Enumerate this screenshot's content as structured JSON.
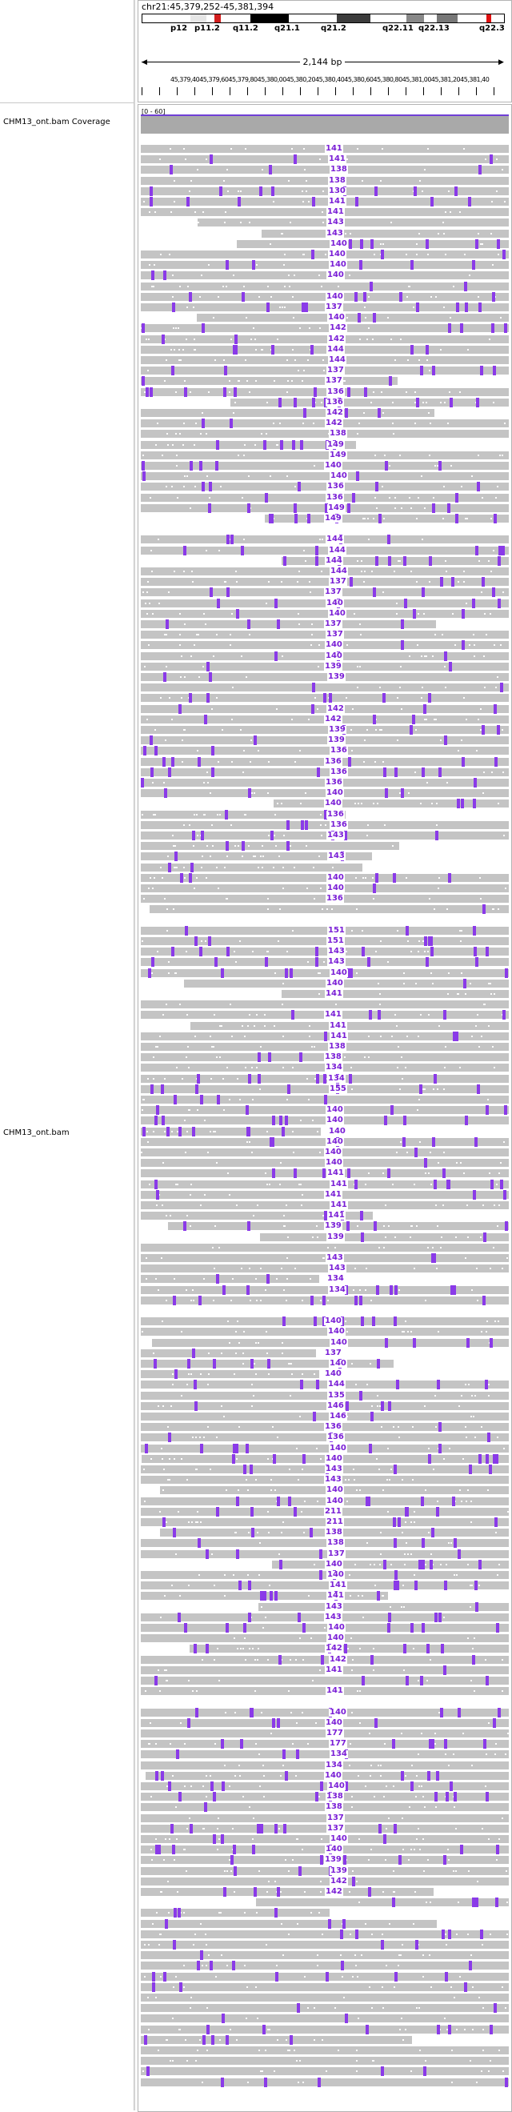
{
  "header": {
    "locus": "chr21:45,379,252-45,381,394",
    "band_labels": [
      "p12",
      "p11.2",
      "q11.2",
      "q21.1",
      "q21.2",
      "q22.11",
      "q22.13",
      "q22.3"
    ],
    "scale_label": "2,144 bp",
    "ruler_text": "45,379,4045,379,6045,379,8045,380,0045,380,2045,380,4045,380,6045,380,8045,381,0045,381,2045,381,40"
  },
  "tracks": {
    "coverage_label": "CHM13_ont.bam Coverage",
    "coverage_range": "[0 - 60]",
    "alignment_label": "CHM13_ont.bam"
  },
  "colors": {
    "read": "#c4c4c4",
    "insertion": "#8a3ae8",
    "coverage": "#a9a9a9",
    "label": "#7a1fd6"
  },
  "read_length_labels": [
    "141",
    "141",
    "138",
    "138",
    "130",
    "141",
    "141",
    "143",
    "143",
    "140",
    "140",
    "140",
    "140",
    "140",
    "137",
    "140",
    "142",
    "142",
    "144",
    "144",
    "137",
    "137",
    "136",
    "136",
    "142",
    "142",
    "138",
    "149",
    "149",
    "140",
    "140",
    "136",
    "136",
    "149",
    "149",
    "144",
    "144",
    "144",
    "144",
    "137",
    "137",
    "140",
    "140",
    "137",
    "137",
    "140",
    "140",
    "139",
    "139",
    "142",
    "142",
    "139",
    "139",
    "136",
    "136",
    "136",
    "136",
    "140",
    "140",
    "136",
    "136",
    "143",
    "143",
    "140",
    "140",
    "136",
    "151",
    "151",
    "143",
    "143",
    "140",
    "140",
    "141",
    "141",
    "141",
    "141",
    "138",
    "138",
    "134",
    "134",
    "155",
    "140",
    "140",
    "140",
    "140",
    "140",
    "140",
    "141",
    "141",
    "141",
    "141",
    "141",
    "139",
    "139",
    "143",
    "143",
    "134",
    "134",
    "140",
    "140",
    "140",
    "137",
    "140",
    "140",
    "144",
    "135",
    "146",
    "146",
    "136",
    "136",
    "140",
    "140",
    "143",
    "143",
    "140",
    "140",
    "211",
    "211",
    "138",
    "138",
    "137",
    "140",
    "140",
    "141",
    "141",
    "143",
    "143",
    "140",
    "140",
    "142",
    "142",
    "141",
    "141",
    "140",
    "140",
    "177",
    "177",
    "134",
    "134",
    "140",
    "140",
    "138",
    "138",
    "137",
    "137",
    "140",
    "140",
    "139",
    "139",
    "142",
    "142"
  ]
}
